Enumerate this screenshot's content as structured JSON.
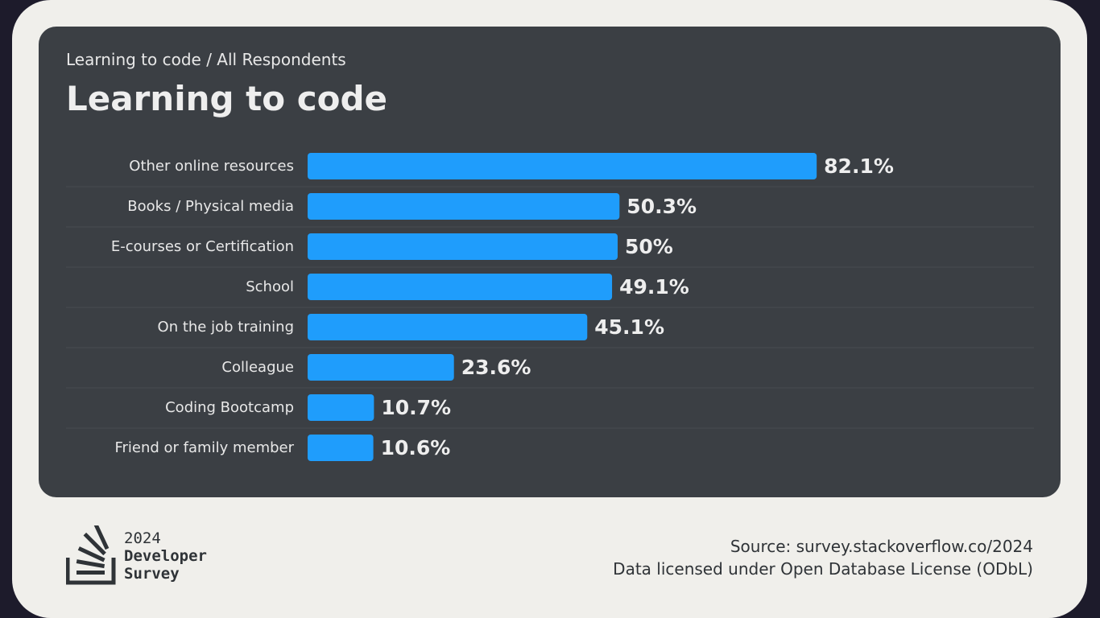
{
  "breadcrumb": "Learning to code / All Respondents",
  "title": "Learning to code",
  "colors": {
    "bar": "#1f9dfc",
    "card": "#3b3f44",
    "frame": "#f0efeb",
    "value_text": "#eeeeee",
    "label_text": "#e8e8e8"
  },
  "chart_data": {
    "type": "bar",
    "orientation": "horizontal",
    "categories": [
      "Other online resources",
      "Books / Physical media",
      "E-courses or Certification",
      "School",
      "On the job training",
      "Colleague",
      "Coding Bootcamp",
      "Friend or family member"
    ],
    "values": [
      82.1,
      50.3,
      50,
      49.1,
      45.1,
      23.6,
      10.7,
      10.6
    ],
    "value_labels": [
      "82.1%",
      "50.3%",
      "50%",
      "49.1%",
      "45.1%",
      "23.6%",
      "10.7%",
      "10.6%"
    ],
    "xlim": [
      0,
      100
    ],
    "grid": false
  },
  "logo": {
    "icon": "stack-overflow-logo-icon",
    "year": "2024",
    "line1": "Developer",
    "line2": "Survey"
  },
  "footer": {
    "source": "Source: survey.stackoverflow.co/2024",
    "license": "Data licensed under Open Database License (ODbL)"
  }
}
